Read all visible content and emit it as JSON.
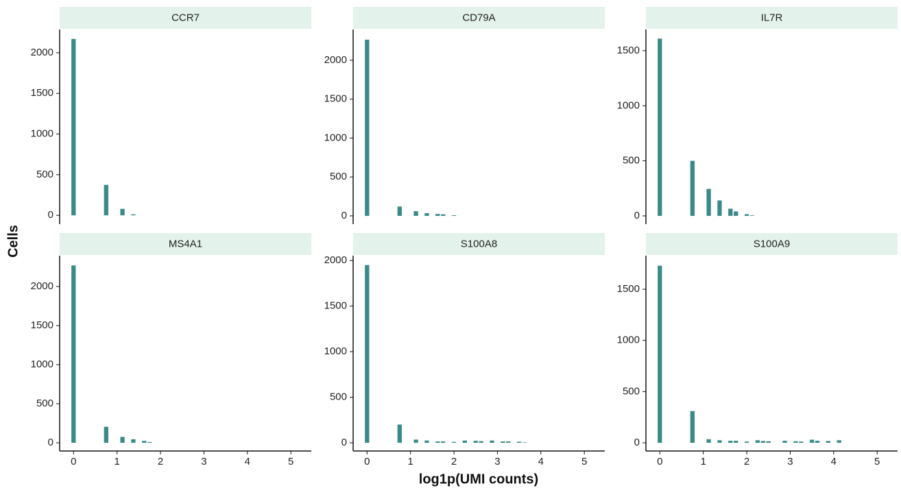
{
  "y_label": "Cells",
  "x_label": "log1p(UMI counts)",
  "chart_data": [
    {
      "type": "histogram",
      "title": "CCR7",
      "color": "#3a8a87",
      "bins": [
        -0.0625,
        0.0625,
        0.1875,
        0.3125,
        0.4375,
        0.5625,
        0.6875,
        0.8125,
        0.9375,
        1.0625,
        1.1875,
        1.3125,
        1.4375
      ],
      "values": [
        2170,
        0,
        0,
        0,
        0,
        0,
        375,
        0,
        0,
        80,
        0,
        12
      ],
      "xlim": [
        -0.32,
        5.47
      ],
      "ylim": [
        -108,
        2286
      ],
      "yticks": [
        0,
        500,
        1000,
        1500,
        2000
      ]
    },
    {
      "type": "histogram",
      "title": "CD79A",
      "color": "#3a8a87",
      "bins": [
        -0.0625,
        0.0625,
        0.1875,
        0.3125,
        0.4375,
        0.5625,
        0.6875,
        0.8125,
        0.9375,
        1.0625,
        1.1875,
        1.3125,
        1.4375,
        1.5625,
        1.6875,
        1.8125,
        1.9375,
        2.0625
      ],
      "values": [
        2265,
        0,
        0,
        0,
        0,
        0,
        120,
        0,
        0,
        60,
        0,
        35,
        0,
        25,
        20,
        0,
        8
      ],
      "xlim": [
        -0.32,
        5.47
      ],
      "ylim": [
        -106,
        2396
      ],
      "yticks": [
        0,
        500,
        1000,
        1500,
        2000
      ]
    },
    {
      "type": "histogram",
      "title": "IL7R",
      "color": "#3a8a87",
      "bins": [
        -0.0625,
        0.0625,
        0.1875,
        0.3125,
        0.4375,
        0.5625,
        0.6875,
        0.8125,
        0.9375,
        1.0625,
        1.1875,
        1.3125,
        1.4375,
        1.5625,
        1.6875,
        1.8125,
        1.9375,
        2.0625,
        2.1875
      ],
      "values": [
        1610,
        0,
        0,
        0,
        0,
        0,
        500,
        0,
        0,
        245,
        0,
        140,
        0,
        65,
        40,
        0,
        15,
        5
      ],
      "xlim": [
        -0.32,
        5.47
      ],
      "ylim": [
        -75,
        1693
      ],
      "yticks": [
        0,
        500,
        1000,
        1500
      ]
    },
    {
      "type": "histogram",
      "title": "MS4A1",
      "color": "#3a8a87",
      "bins": [
        -0.0625,
        0.0625,
        0.1875,
        0.3125,
        0.4375,
        0.5625,
        0.6875,
        0.8125,
        0.9375,
        1.0625,
        1.1875,
        1.3125,
        1.4375,
        1.5625,
        1.6875,
        1.8125
      ],
      "values": [
        2270,
        0,
        0,
        0,
        0,
        0,
        205,
        0,
        0,
        75,
        0,
        45,
        0,
        25,
        10
      ],
      "xlim": [
        -0.32,
        5.47
      ],
      "ylim": [
        -105,
        2395
      ],
      "yticks": [
        0,
        500,
        1000,
        1500,
        2000
      ],
      "xticks": [
        0,
        1,
        2,
        3,
        4,
        5
      ]
    },
    {
      "type": "histogram",
      "title": "S100A8",
      "color": "#3a8a87",
      "bins": [
        -0.0625,
        0.0625,
        0.1875,
        0.3125,
        0.4375,
        0.5625,
        0.6875,
        0.8125,
        0.9375,
        1.0625,
        1.1875,
        1.3125,
        1.4375,
        1.5625,
        1.6875,
        1.8125,
        1.9375,
        2.0625,
        2.1875,
        2.3125,
        2.4375,
        2.5625,
        2.6875,
        2.8125,
        2.9375,
        3.0625,
        3.1875,
        3.3125,
        3.4375,
        3.5625,
        3.6875
      ],
      "values": [
        1950,
        0,
        0,
        0,
        0,
        0,
        200,
        0,
        0,
        35,
        0,
        25,
        0,
        15,
        15,
        0,
        10,
        0,
        25,
        0,
        22,
        18,
        0,
        25,
        0,
        15,
        15,
        0,
        12,
        5
      ],
      "xlim": [
        -0.32,
        5.47
      ],
      "ylim": [
        -90,
        2053
      ],
      "yticks": [
        0,
        500,
        1000,
        1500,
        2000
      ],
      "xticks": [
        0,
        1,
        2,
        3,
        4,
        5
      ]
    },
    {
      "type": "histogram",
      "title": "S100A9",
      "color": "#3a8a87",
      "bins": [
        -0.0625,
        0.0625,
        0.1875,
        0.3125,
        0.4375,
        0.5625,
        0.6875,
        0.8125,
        0.9375,
        1.0625,
        1.1875,
        1.3125,
        1.4375,
        1.5625,
        1.6875,
        1.8125,
        1.9375,
        2.0625,
        2.1875,
        2.3125,
        2.4375,
        2.5625,
        2.6875,
        2.8125,
        2.9375,
        3.0625,
        3.1875,
        3.3125,
        3.4375,
        3.5625,
        3.6875,
        3.8125,
        3.9375,
        4.0625,
        4.1875
      ],
      "values": [
        1730,
        0,
        0,
        0,
        0,
        0,
        310,
        0,
        0,
        35,
        0,
        25,
        0,
        20,
        20,
        0,
        12,
        0,
        25,
        18,
        15,
        0,
        0,
        20,
        0,
        15,
        12,
        0,
        30,
        20,
        0,
        18,
        0,
        25
      ],
      "xlim": [
        -0.32,
        5.47
      ],
      "ylim": [
        -80,
        1828
      ],
      "yticks": [
        0,
        500,
        1000,
        1500
      ],
      "xticks": [
        0,
        1,
        2,
        3,
        4,
        5
      ]
    }
  ]
}
